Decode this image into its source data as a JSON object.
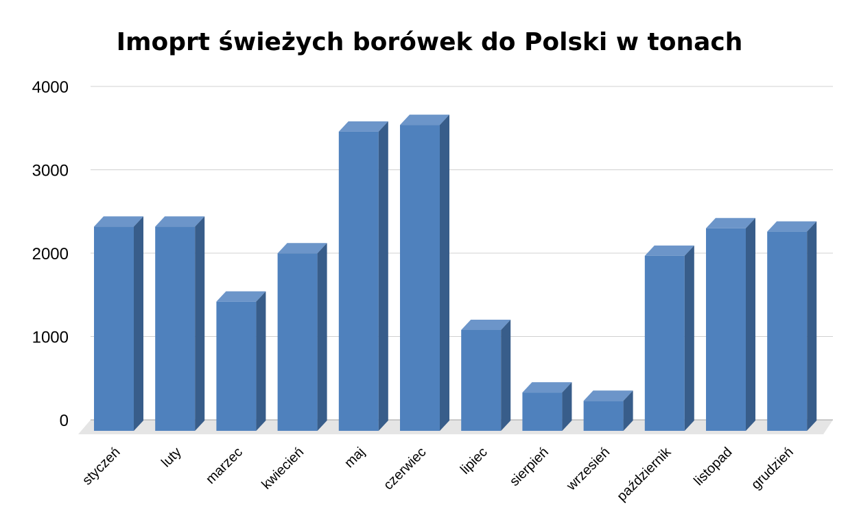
{
  "chart_data": {
    "type": "bar",
    "title": "Imoprt świeżych borówek do Polski w tonach",
    "xlabel": "",
    "ylabel": "",
    "categories": [
      "styczeń",
      "luty",
      "marzec",
      "kwiecień",
      "maj",
      "czerwiec",
      "lipiec",
      "sierpień",
      "wrzesień",
      "październik",
      "listopad",
      "grudzień"
    ],
    "values": [
      2450,
      2450,
      1550,
      2130,
      3590,
      3670,
      1210,
      460,
      360,
      2100,
      2430,
      2390
    ],
    "ylim": [
      0,
      4000
    ],
    "yticks": [
      "0",
      "1000",
      "2000",
      "3000",
      "4000"
    ],
    "grid": true,
    "legend": "none",
    "style": "3d-column"
  },
  "colors": {
    "bar_front": "#4f81bd",
    "bar_top": "#6c95c9",
    "bar_side": "#385d8a",
    "floor": "#e5e5e5",
    "grid": "#d0d0d0"
  }
}
